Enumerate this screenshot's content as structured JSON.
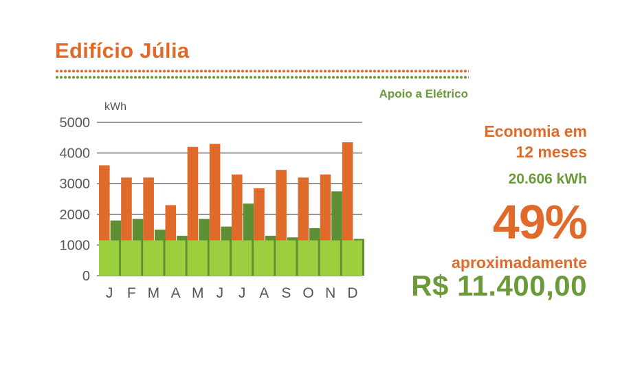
{
  "header": {
    "title": "Edifício Júlia",
    "subtitle": "Apoio a Elétrico"
  },
  "summary": {
    "economy_line1": "Economia em",
    "economy_line2": "12 meses",
    "energy": "20.606 kWh",
    "percent": "49%",
    "approx": "aproximadamente",
    "money": "R$ 11.400,00"
  },
  "colors": {
    "orange": "#e06a2a",
    "dark_green": "#5e8f35",
    "light_green": "#9ccf3d",
    "grid": "#7a7a7a",
    "text_gray": "#555555"
  },
  "chart_data": {
    "type": "bar",
    "ylabel": "kWh",
    "ylim": [
      0,
      5000
    ],
    "yticks": [
      "5000",
      "4000",
      "3000",
      "2000",
      "1000",
      "0"
    ],
    "categories": [
      "J",
      "F",
      "M",
      "A",
      "M",
      "J",
      "J",
      "A",
      "S",
      "O",
      "N",
      "D"
    ],
    "series": [
      {
        "values": [
          3600,
          3200,
          3200,
          2300,
          4200,
          4300,
          3300,
          2850,
          3450,
          3200,
          3300,
          4350
        ]
      },
      {
        "values": [
          1800,
          1850,
          1500,
          1300,
          1850,
          1600,
          2350,
          1300,
          1250,
          1550,
          2750,
          1200
        ]
      },
      {
        "values": [
          1150,
          1150,
          1150,
          1150,
          1150,
          1150,
          1150,
          1150,
          1150,
          1150,
          1150,
          1150
        ]
      }
    ],
    "grid": true
  }
}
